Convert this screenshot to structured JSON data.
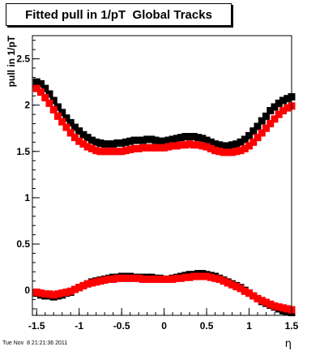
{
  "chart_data": {
    "type": "scatter",
    "title": "Fitted pull in 1/pT  Global Tracks",
    "xlabel": "η",
    "ylabel": "pull in 1/pT",
    "xlim": [
      -1.55,
      1.5
    ],
    "ylim": [
      -0.27,
      2.75
    ],
    "x_ticks": [
      -1.5,
      -1,
      -0.5,
      0,
      0.5,
      1,
      1.5
    ],
    "x_tick_labels": [
      "-1.5",
      "-1",
      "-0.5",
      "0",
      "0.5",
      "1",
      "1.5"
    ],
    "y_ticks": [
      0,
      0.5,
      1,
      1.5,
      2,
      2.5
    ],
    "y_tick_labels": [
      "0",
      "0.5",
      "1",
      "1.5",
      "2",
      "2.5"
    ],
    "grid": false,
    "marker": "square",
    "series": [
      {
        "color": "#000000",
        "x": [
          -1.5,
          -1.45,
          -1.4,
          -1.35,
          -1.3,
          -1.25,
          -1.2,
          -1.15,
          -1.1,
          -1.05,
          -1.0,
          -0.95,
          -0.9,
          -0.85,
          -0.8,
          -0.75,
          -0.7,
          -0.65,
          -0.6,
          -0.55,
          -0.5,
          -0.45,
          -0.4,
          -0.35,
          -0.3,
          -0.25,
          -0.2,
          -0.15,
          -0.1,
          -0.05,
          0.0,
          0.05,
          0.1,
          0.15,
          0.2,
          0.25,
          0.3,
          0.35,
          0.4,
          0.45,
          0.5,
          0.55,
          0.6,
          0.65,
          0.7,
          0.75,
          0.8,
          0.85,
          0.9,
          0.95,
          1.0,
          1.05,
          1.1,
          1.15,
          1.2,
          1.25,
          1.3,
          1.35,
          1.4,
          1.45,
          1.5
        ],
        "y_upper": [
          2.25,
          2.23,
          2.18,
          2.12,
          2.05,
          1.98,
          1.92,
          1.86,
          1.81,
          1.76,
          1.72,
          1.68,
          1.65,
          1.62,
          1.6,
          1.59,
          1.58,
          1.58,
          1.58,
          1.59,
          1.59,
          1.6,
          1.61,
          1.62,
          1.62,
          1.62,
          1.63,
          1.63,
          1.62,
          1.61,
          1.61,
          1.62,
          1.63,
          1.64,
          1.65,
          1.66,
          1.66,
          1.66,
          1.65,
          1.64,
          1.62,
          1.6,
          1.58,
          1.57,
          1.56,
          1.56,
          1.57,
          1.58,
          1.6,
          1.63,
          1.67,
          1.72,
          1.77,
          1.83,
          1.88,
          1.94,
          1.98,
          2.02,
          2.05,
          2.07,
          2.09
        ],
        "y_lower": [
          -0.03,
          -0.05,
          -0.06,
          -0.06,
          -0.07,
          -0.06,
          -0.05,
          -0.03,
          -0.02,
          0.01,
          0.03,
          0.05,
          0.07,
          0.09,
          0.1,
          0.11,
          0.12,
          0.13,
          0.14,
          0.14,
          0.15,
          0.15,
          0.15,
          0.14,
          0.14,
          0.14,
          0.14,
          0.14,
          0.13,
          0.13,
          0.12,
          0.12,
          0.13,
          0.14,
          0.15,
          0.16,
          0.17,
          0.17,
          0.18,
          0.18,
          0.17,
          0.16,
          0.15,
          0.13,
          0.11,
          0.09,
          0.07,
          0.05,
          0.03,
          0.0,
          -0.03,
          -0.06,
          -0.09,
          -0.12,
          -0.14,
          -0.16,
          -0.18,
          -0.2,
          -0.22,
          -0.23,
          -0.24
        ]
      },
      {
        "color": "#ff0000",
        "x": [
          -1.5,
          -1.45,
          -1.4,
          -1.35,
          -1.3,
          -1.25,
          -1.2,
          -1.15,
          -1.1,
          -1.05,
          -1.0,
          -0.95,
          -0.9,
          -0.85,
          -0.8,
          -0.75,
          -0.7,
          -0.65,
          -0.6,
          -0.55,
          -0.5,
          -0.45,
          -0.4,
          -0.35,
          -0.3,
          -0.25,
          -0.2,
          -0.15,
          -0.1,
          -0.05,
          0.0,
          0.05,
          0.1,
          0.15,
          0.2,
          0.25,
          0.3,
          0.35,
          0.4,
          0.45,
          0.5,
          0.55,
          0.6,
          0.65,
          0.7,
          0.75,
          0.8,
          0.85,
          0.9,
          0.95,
          1.0,
          1.05,
          1.1,
          1.15,
          1.2,
          1.25,
          1.3,
          1.35,
          1.4,
          1.45,
          1.5
        ],
        "y_upper": [
          2.18,
          2.14,
          2.08,
          2.02,
          1.95,
          1.88,
          1.82,
          1.76,
          1.7,
          1.65,
          1.61,
          1.58,
          1.55,
          1.53,
          1.51,
          1.5,
          1.5,
          1.5,
          1.5,
          1.5,
          1.5,
          1.51,
          1.52,
          1.53,
          1.53,
          1.54,
          1.54,
          1.54,
          1.54,
          1.54,
          1.54,
          1.55,
          1.56,
          1.56,
          1.57,
          1.57,
          1.58,
          1.57,
          1.57,
          1.56,
          1.55,
          1.53,
          1.51,
          1.5,
          1.49,
          1.49,
          1.49,
          1.5,
          1.51,
          1.53,
          1.56,
          1.6,
          1.65,
          1.7,
          1.75,
          1.8,
          1.85,
          1.9,
          1.94,
          1.97,
          1.99
        ],
        "y_lower": [
          -0.02,
          -0.03,
          -0.04,
          -0.04,
          -0.05,
          -0.04,
          -0.03,
          -0.02,
          -0.01,
          0.01,
          0.03,
          0.05,
          0.07,
          0.08,
          0.09,
          0.1,
          0.11,
          0.12,
          0.12,
          0.13,
          0.13,
          0.13,
          0.13,
          0.13,
          0.13,
          0.12,
          0.12,
          0.12,
          0.12,
          0.12,
          0.12,
          0.12,
          0.12,
          0.13,
          0.13,
          0.14,
          0.14,
          0.15,
          0.15,
          0.15,
          0.15,
          0.14,
          0.13,
          0.12,
          0.1,
          0.08,
          0.06,
          0.04,
          0.02,
          -0.01,
          -0.03,
          -0.06,
          -0.09,
          -0.11,
          -0.13,
          -0.15,
          -0.17,
          -0.18,
          -0.19,
          -0.2,
          -0.21
        ]
      }
    ]
  },
  "footer": {
    "timestamp": "Tue Nov  8 21:21:36 2011"
  }
}
